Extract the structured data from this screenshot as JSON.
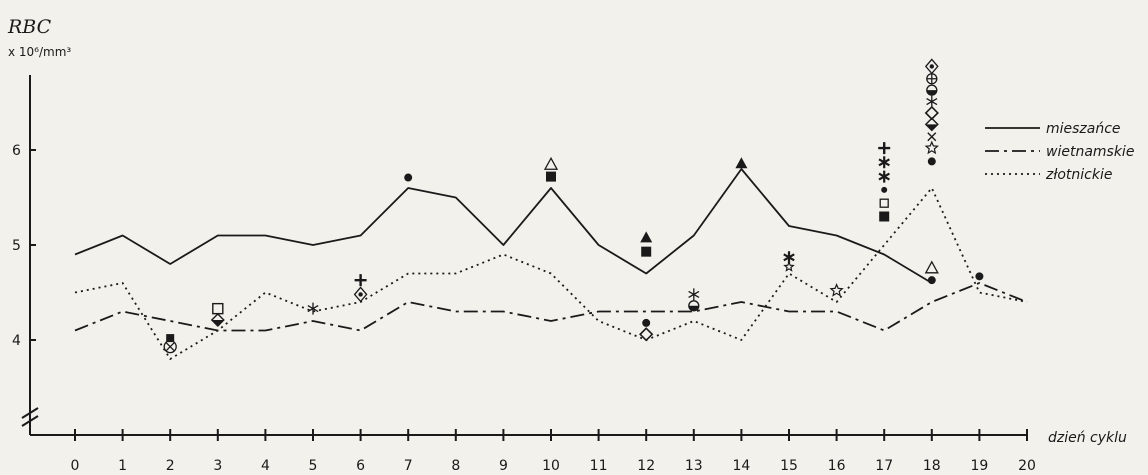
{
  "chart_data": {
    "type": "line",
    "ylabel": "RBC",
    "yunit": "x 10⁶/mm³",
    "xlabel": "dzień cyklu",
    "x": [
      0,
      1,
      2,
      3,
      4,
      5,
      6,
      7,
      8,
      9,
      10,
      11,
      12,
      13,
      14,
      15,
      16,
      17,
      18,
      19,
      20
    ],
    "yticks": [
      4,
      5,
      6
    ],
    "ylim": [
      3.1,
      6.9
    ],
    "xlim": [
      0,
      20
    ],
    "series": [
      {
        "name": "mieszańce",
        "style": "solid",
        "x": [
          0,
          1,
          2,
          3,
          4,
          5,
          6,
          7,
          8,
          9,
          10,
          11,
          12,
          13,
          14,
          15,
          16,
          17,
          18
        ],
        "values": [
          4.9,
          5.1,
          4.8,
          5.1,
          5.1,
          5.0,
          5.1,
          5.6,
          5.5,
          5.0,
          5.6,
          5.0,
          4.7,
          5.1,
          5.8,
          5.2,
          5.1,
          4.9,
          4.6
        ]
      },
      {
        "name": "wietnamskie",
        "style": "dashdot",
        "x": [
          0,
          1,
          2,
          3,
          4,
          5,
          6,
          7,
          8,
          9,
          10,
          11,
          12,
          13,
          14,
          15,
          16,
          17,
          18,
          19,
          20
        ],
        "values": [
          4.1,
          4.3,
          4.2,
          4.1,
          4.1,
          4.2,
          4.1,
          4.4,
          4.3,
          4.3,
          4.2,
          4.3,
          4.3,
          4.3,
          4.4,
          4.3,
          4.3,
          4.1,
          4.4,
          4.6,
          4.4
        ]
      },
      {
        "name": "złotnickie",
        "style": "dotted",
        "x": [
          0,
          1,
          2,
          3,
          4,
          5,
          6,
          7,
          8,
          9,
          10,
          11,
          12,
          13,
          14,
          15,
          16,
          17,
          18,
          19,
          20
        ],
        "values": [
          4.5,
          4.6,
          3.8,
          4.1,
          4.5,
          4.3,
          4.4,
          4.7,
          4.7,
          4.9,
          4.7,
          4.2,
          4.0,
          4.2,
          4.0,
          4.7,
          4.4,
          5.0,
          5.6,
          4.5,
          4.4
        ]
      }
    ],
    "markers": [
      {
        "x": 2,
        "y": 4.02,
        "symbol": "filled-square-small"
      },
      {
        "x": 2,
        "y": 3.93,
        "symbol": "circle-cross"
      },
      {
        "x": 3,
        "y": 4.33,
        "symbol": "open-square"
      },
      {
        "x": 3,
        "y": 4.21,
        "symbol": "half-diamond"
      },
      {
        "x": 5,
        "y": 4.33,
        "symbol": "asterisk"
      },
      {
        "x": 6,
        "y": 4.63,
        "symbol": "plus"
      },
      {
        "x": 6,
        "y": 4.48,
        "symbol": "diamond-dot"
      },
      {
        "x": 7,
        "y": 5.71,
        "symbol": "filled-circle"
      },
      {
        "x": 10,
        "y": 5.85,
        "symbol": "open-triangle"
      },
      {
        "x": 10,
        "y": 5.72,
        "symbol": "filled-square"
      },
      {
        "x": 12,
        "y": 5.08,
        "symbol": "filled-triangle"
      },
      {
        "x": 12,
        "y": 4.93,
        "symbol": "filled-square"
      },
      {
        "x": 12,
        "y": 4.18,
        "symbol": "filled-circle"
      },
      {
        "x": 12,
        "y": 4.06,
        "symbol": "open-diamond"
      },
      {
        "x": 13,
        "y": 4.48,
        "symbol": "asterisk"
      },
      {
        "x": 13,
        "y": 4.36,
        "symbol": "half-circle"
      },
      {
        "x": 14,
        "y": 5.86,
        "symbol": "filled-triangle"
      },
      {
        "x": 15,
        "y": 4.87,
        "symbol": "asterisk-bold"
      },
      {
        "x": 15,
        "y": 4.77,
        "symbol": "star-small"
      },
      {
        "x": 16,
        "y": 4.52,
        "symbol": "open-star"
      },
      {
        "x": 17,
        "y": 6.02,
        "symbol": "plus"
      },
      {
        "x": 17,
        "y": 5.87,
        "symbol": "asterisk-bold"
      },
      {
        "x": 17,
        "y": 5.72,
        "symbol": "asterisk-bold"
      },
      {
        "x": 17,
        "y": 5.58,
        "symbol": "filled-circle-small"
      },
      {
        "x": 17,
        "y": 5.44,
        "symbol": "open-square-small"
      },
      {
        "x": 17,
        "y": 5.3,
        "symbol": "filled-square"
      },
      {
        "x": 18,
        "y": 6.88,
        "symbol": "diamond-dot"
      },
      {
        "x": 18,
        "y": 6.75,
        "symbol": "circle-plus"
      },
      {
        "x": 18,
        "y": 6.63,
        "symbol": "half-circle"
      },
      {
        "x": 18,
        "y": 6.51,
        "symbol": "asterisk"
      },
      {
        "x": 18,
        "y": 6.39,
        "symbol": "open-diamond"
      },
      {
        "x": 18,
        "y": 6.27,
        "symbol": "half-diamond"
      },
      {
        "x": 18,
        "y": 6.14,
        "symbol": "x-mark"
      },
      {
        "x": 18,
        "y": 6.02,
        "symbol": "open-star"
      },
      {
        "x": 18,
        "y": 5.88,
        "symbol": "filled-circle"
      },
      {
        "x": 18,
        "y": 4.76,
        "symbol": "open-triangle"
      },
      {
        "x": 18,
        "y": 4.63,
        "symbol": "filled-circle"
      },
      {
        "x": 19,
        "y": 4.67,
        "symbol": "filled-circle"
      }
    ],
    "legend": "top-right",
    "grid": false
  }
}
